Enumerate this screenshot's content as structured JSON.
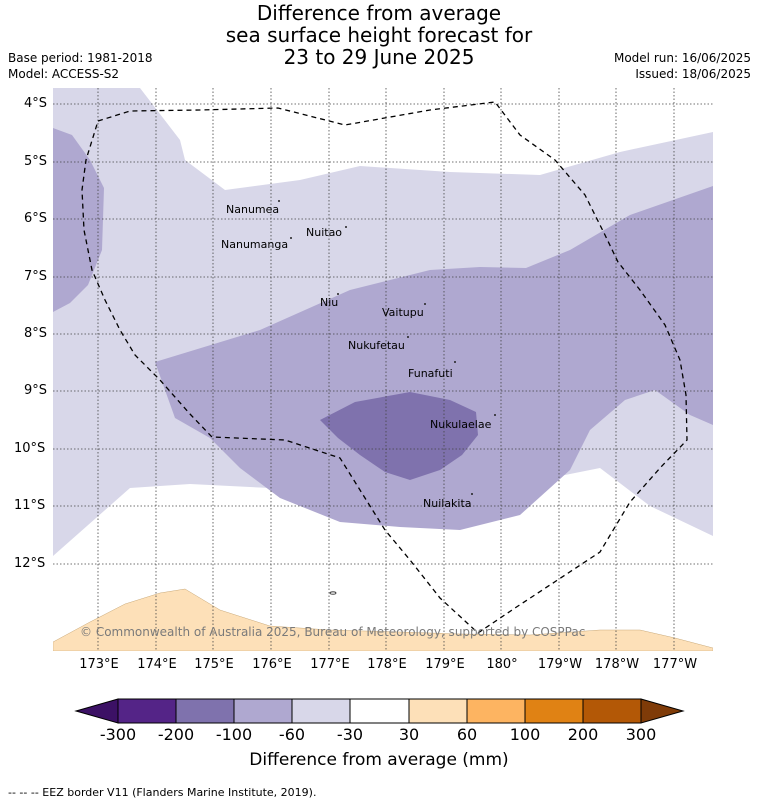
{
  "title": {
    "line1": "Difference from average",
    "line2": "sea surface height forecast for",
    "line3": "23 to 29 June 2025"
  },
  "meta": {
    "base_period": "Base period: 1981-2018",
    "model": "Model: ACCESS-S2",
    "model_run": "Model run: 16/06/2025",
    "issued": "Issued: 18/06/2025"
  },
  "map": {
    "lat_labels": [
      "4°S",
      "5°S",
      "6°S",
      "7°S",
      "8°S",
      "9°S",
      "10°S",
      "11°S",
      "12°S"
    ],
    "lon_labels": [
      "173°E",
      "174°E",
      "175°E",
      "176°E",
      "177°E",
      "178°E",
      "179°E",
      "180°",
      "179°W",
      "178°W",
      "177°W"
    ],
    "places": [
      "Nanumea",
      "Nuitao",
      "Nanumanga",
      "Niu",
      "Vaitupu",
      "Nukufetau",
      "Funafuti",
      "Nukulaelae",
      "Nuilakita"
    ],
    "copyright": "© Commonwealth of Australia 2025, Bureau of Meteorology, supported by COSPPac",
    "colors": {
      "level_-200_-100": "#7f72ad",
      "level_-100_-60": "#afa8d0",
      "level_-60_-30": "#d8d7e9",
      "level_30_60": "#fde0b8",
      "border": "#000000"
    }
  },
  "colorbar": {
    "ticks": [
      "-300",
      "-200",
      "-100",
      "-60",
      "-30",
      "30",
      "60",
      "100",
      "200",
      "300"
    ],
    "colors": [
      "#3c1165",
      "#542487",
      "#7f72ad",
      "#afa8d0",
      "#d8d7e9",
      "#ffffff",
      "#fde0b8",
      "#fdb461",
      "#e08214",
      "#b35806",
      "#7f3b08"
    ],
    "label": "Difference from average (mm)"
  },
  "footer": "--  --  -- EEZ border V11 (Flanders Marine Institute, 2019)."
}
